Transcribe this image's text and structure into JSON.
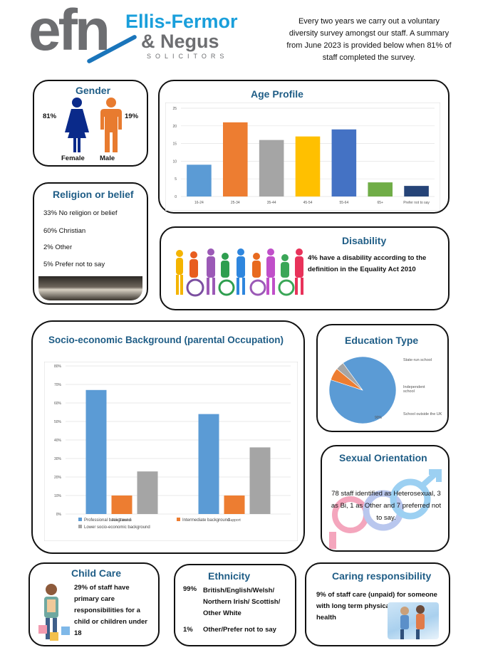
{
  "header": {
    "logo_text": "efn",
    "firm_line1": "Ellis-Fermor",
    "firm_line2": "& Negus",
    "firm_line3": "SOLICITORS",
    "intro": "Every two years we carry out a voluntary diversity survey amongst our staff. A summary from June 2023 is provided below when 81%  of staff completed the survey."
  },
  "gender": {
    "title": "Gender",
    "female_pct": "81%",
    "male_pct": "19%",
    "female_label": "Female",
    "male_label": "Male",
    "colors": {
      "female": "#0a2a8a",
      "male": "#e87b2f"
    }
  },
  "religion": {
    "title": "Religion or belief",
    "items": [
      "33%  No religion or belief",
      "60% Christian",
      "2% Other",
      "5% Prefer not to say"
    ]
  },
  "disability": {
    "title": "Disability",
    "text": "4% have a disability according to the definition in the Equality Act 2010"
  },
  "socio": {
    "title": "Socio-economic Background (parental Occupation)"
  },
  "education": {
    "title": "Education Type",
    "legend": [
      "State-run school",
      "Independent school",
      "School outside the UK"
    ],
    "slice_label": "90%"
  },
  "sexual_orientation": {
    "title": "Sexual Orientation",
    "text": "78 staff identified as Heterosexual, 3 as Bi, 1 as Other and 7 preferred not to say."
  },
  "child_care": {
    "title": "Child Care",
    "text": "29% of staff have primary care responsibilities for a child or children under 18"
  },
  "ethnicity": {
    "title": "Ethnicity",
    "rows": [
      {
        "pct": "99%",
        "label": "British/English/Welsh/ Northern Irish/ Scottish/ Other White"
      },
      {
        "pct": "1%",
        "label": "Other/Prefer not to say"
      }
    ]
  },
  "caring": {
    "title": "Caring responsibility",
    "text": "9% of staff care (unpaid) for someone with long term physical or mental ill health"
  },
  "chart_data": [
    {
      "type": "bar",
      "title": "Age Profile",
      "categories": [
        "16-24",
        "25-34",
        "35-44",
        "45-54",
        "55-64",
        "65+",
        "Prefer not to say"
      ],
      "values": [
        9,
        21,
        16,
        17,
        19,
        4,
        3
      ],
      "colors": [
        "#5b9bd5",
        "#ed7d31",
        "#a5a5a5",
        "#ffc000",
        "#4472c4",
        "#70ad47",
        "#264478"
      ],
      "ylim": [
        0,
        25
      ],
      "yticks": [
        "0",
        "5",
        "10",
        "15",
        "20",
        "25"
      ]
    },
    {
      "type": "bar",
      "title": "Socio-economic Background (parental Occupation)",
      "categories": [
        "Fee Earners",
        "Support"
      ],
      "series": [
        {
          "name": "Professional background",
          "values": [
            0.67,
            0.54
          ],
          "color": "#5b9bd5"
        },
        {
          "name": "Intermediate background",
          "values": [
            0.1,
            0.1
          ],
          "color": "#ed7d31"
        },
        {
          "name": "Lower socio-economic background",
          "values": [
            0.23,
            0.36
          ],
          "color": "#a5a5a5"
        }
      ],
      "ylim": [
        0,
        0.8
      ],
      "yticks": [
        "0%",
        "10%",
        "20%",
        "30%",
        "40%",
        "50%",
        "60%",
        "70%",
        "80%"
      ]
    },
    {
      "type": "pie",
      "title": "Education Type",
      "categories": [
        "State-run school",
        "Independent school",
        "School outside the UK"
      ],
      "values": [
        90,
        6,
        4
      ],
      "colors": [
        "#5b9bd5",
        "#ed7d31",
        "#a5a5a5"
      ]
    }
  ]
}
